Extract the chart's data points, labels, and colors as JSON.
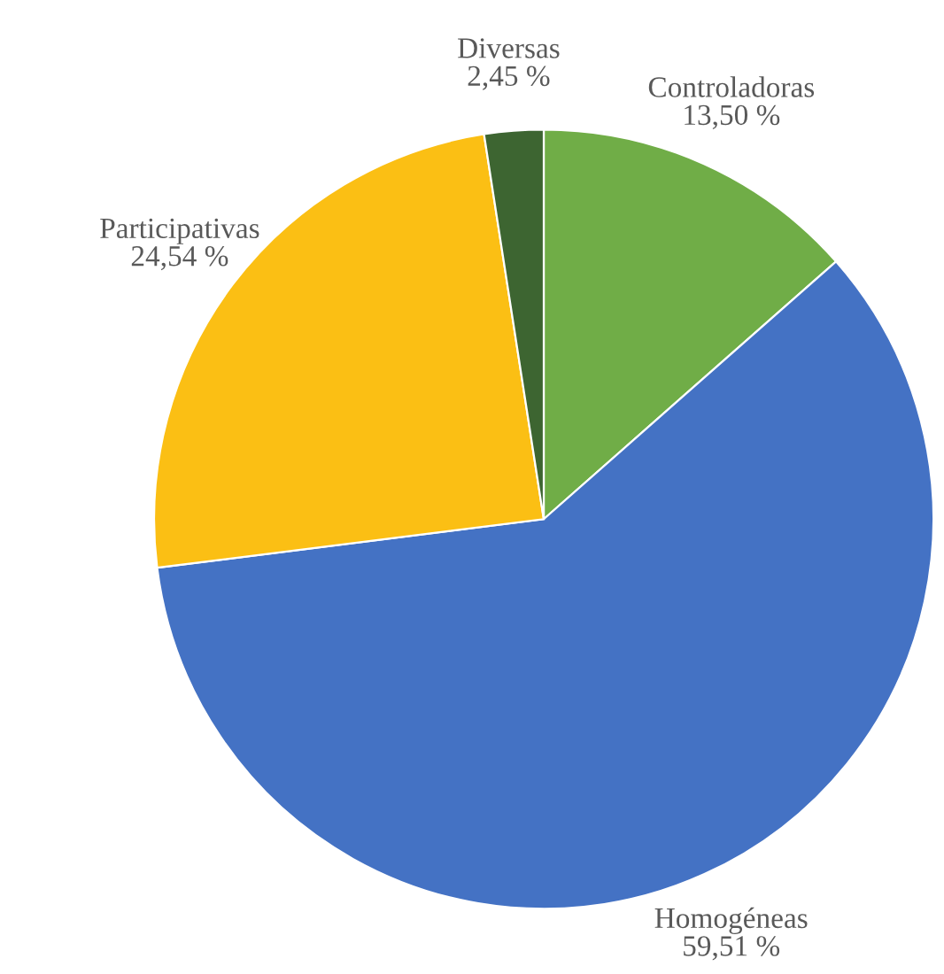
{
  "chart_data": {
    "type": "pie",
    "categories": [
      "Controladoras",
      "Homogéneas",
      "Participativas",
      "Diversas"
    ],
    "values": [
      13.5,
      59.51,
      24.54,
      2.45
    ],
    "value_labels": [
      "13,50 %",
      "59,51 %",
      "24,54 %",
      "2,45 %"
    ],
    "colors": [
      "#70ad47",
      "#4472c4",
      "#fbbf14",
      "#3d6531"
    ],
    "legend": false
  }
}
